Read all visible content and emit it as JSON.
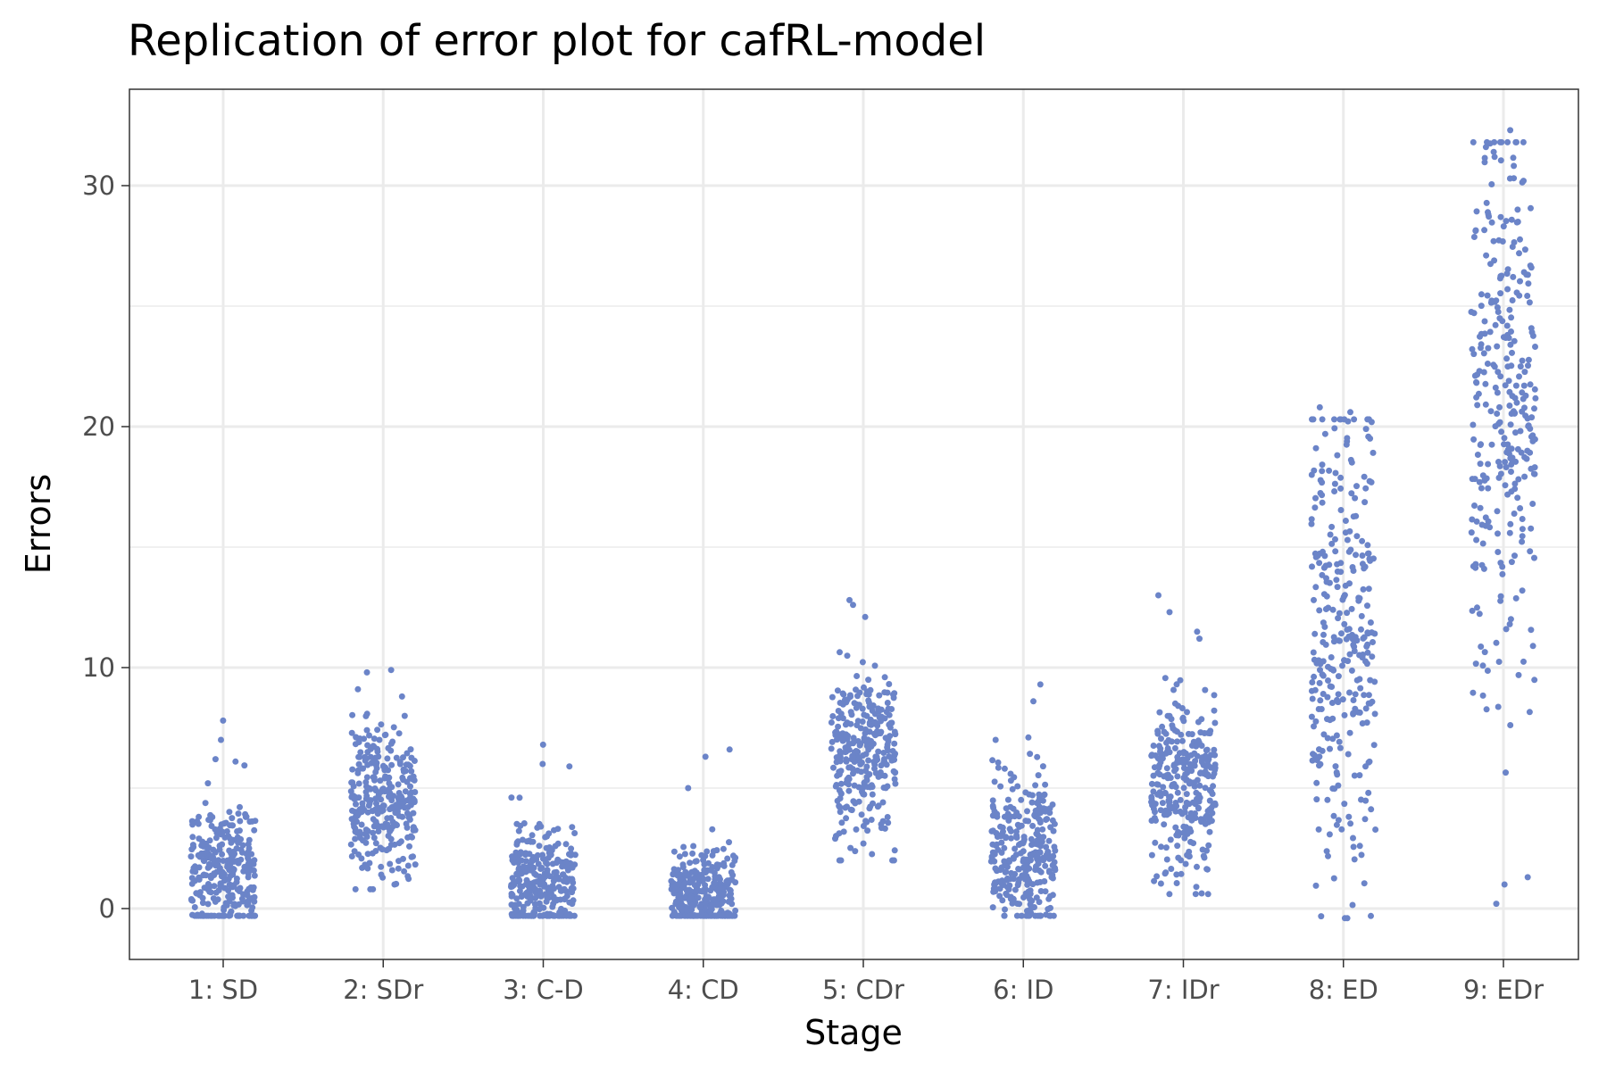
{
  "chart_data": {
    "type": "scatter",
    "title": "Replication of error plot for cafRL-model",
    "xlabel": "Stage",
    "ylabel": "Errors",
    "categories": [
      "1: SD",
      "2: SDr",
      "3: C-D",
      "4: CD",
      "5: CDr",
      "6: ID",
      "7: IDr",
      "8: ED",
      "9: EDr"
    ],
    "ylim": [
      -2,
      33
    ],
    "yticks": [
      0,
      10,
      20,
      30
    ],
    "grid": true,
    "legend": "none",
    "point_color": "#6b84c8",
    "jitter": "horizontal and vertical jitter around each stage",
    "series": [
      {
        "category": "1: SD",
        "n": 300,
        "median": 1.5,
        "spread": 1.6,
        "min": -0.3,
        "max": 7.8,
        "outliers": [
          7.8,
          7.0,
          6.2,
          6.1
        ]
      },
      {
        "category": "2: SDr",
        "n": 300,
        "median": 4.5,
        "spread": 1.5,
        "min": 0.8,
        "max": 9.9,
        "outliers": [
          9.9,
          9.8,
          9.1,
          8.8,
          0.8,
          1.0
        ]
      },
      {
        "category": "3: C-D",
        "n": 300,
        "median": 1.0,
        "spread": 1.2,
        "min": -0.3,
        "max": 6.8,
        "outliers": [
          6.8,
          6.0,
          5.9
        ]
      },
      {
        "category": "4: CD",
        "n": 300,
        "median": 0.5,
        "spread": 0.9,
        "min": -0.3,
        "max": 6.6,
        "outliers": [
          6.6,
          6.3,
          5.0
        ]
      },
      {
        "category": "5: CDr",
        "n": 300,
        "median": 6.5,
        "spread": 1.8,
        "min": 2.0,
        "max": 12.8,
        "outliers": [
          12.8,
          12.6,
          12.1,
          2.0,
          2.7
        ]
      },
      {
        "category": "6: ID",
        "n": 300,
        "median": 2.2,
        "spread": 1.7,
        "min": -0.3,
        "max": 9.3,
        "outliers": [
          9.3,
          8.6,
          7.1,
          7.0
        ]
      },
      {
        "category": "7: IDr",
        "n": 300,
        "median": 5.0,
        "spread": 1.7,
        "min": 0.6,
        "max": 13.0,
        "outliers": [
          13.0,
          12.3,
          11.2,
          0.6,
          0.9
        ]
      },
      {
        "category": "8: ED",
        "n": 300,
        "median": 11.5,
        "spread": 4.8,
        "min": -0.4,
        "max": 20.8,
        "outliers": [
          20.8,
          20.6,
          20.3
        ]
      },
      {
        "category": "9: EDr",
        "n": 300,
        "median": 21.0,
        "spread": 6.0,
        "min": 0.2,
        "max": 32.3,
        "outliers": [
          32.3,
          31.6,
          31.4,
          30.2,
          0.2,
          1.0,
          1.3
        ]
      }
    ]
  }
}
